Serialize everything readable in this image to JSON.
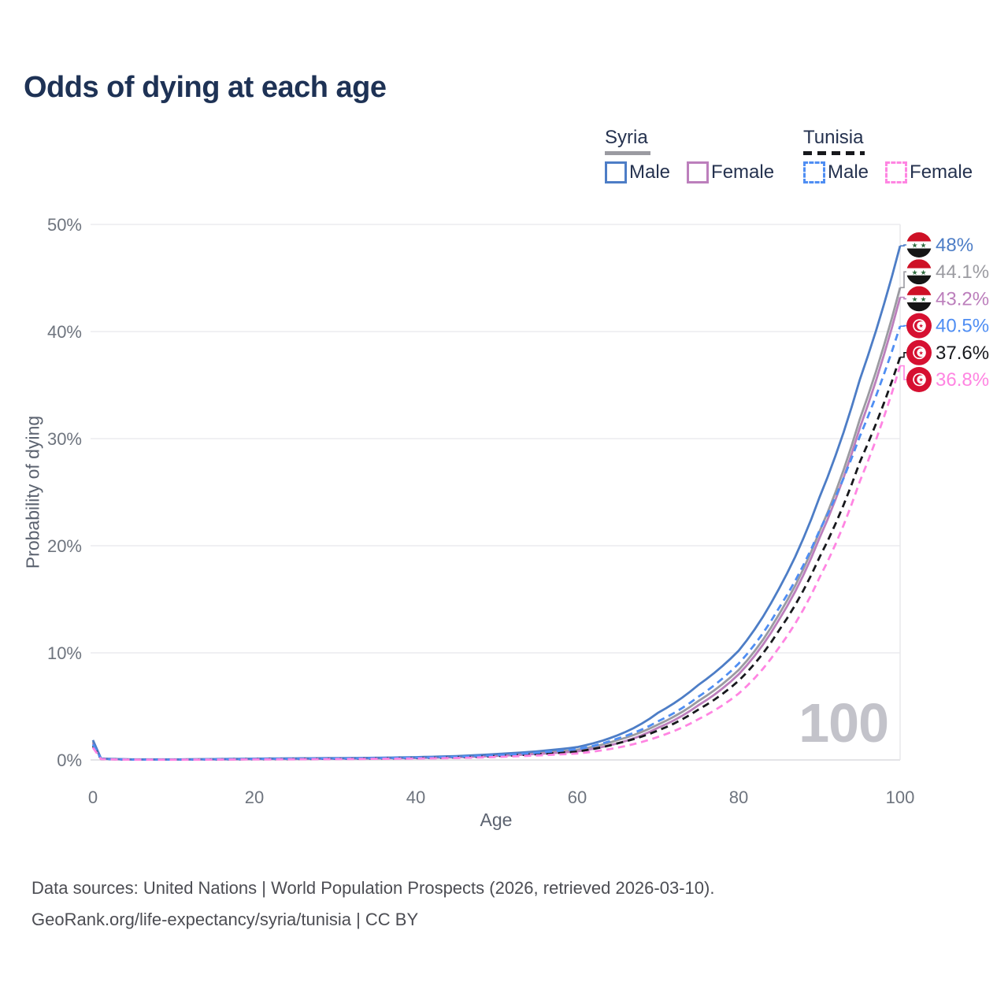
{
  "title": "Odds of dying at each age",
  "legend": {
    "groups": [
      {
        "name": "Syria",
        "key_style": "solid",
        "key_color": "#9b9ba1",
        "items": [
          {
            "label": "Male",
            "color": "#4d7dc6",
            "style": "solid"
          },
          {
            "label": "Female",
            "color": "#bc7fbc",
            "style": "solid"
          }
        ]
      },
      {
        "name": "Tunisia",
        "key_style": "dashed",
        "key_color": "#17181c",
        "items": [
          {
            "label": "Male",
            "color": "#4f8ef3",
            "style": "dashed"
          },
          {
            "label": "Female",
            "color": "#ff85e2",
            "style": "dashed"
          }
        ]
      }
    ]
  },
  "chart_data": {
    "type": "line",
    "title": "Odds of dying at each age",
    "xlabel": "Age",
    "ylabel": "Probability of dying",
    "xlim": [
      0,
      100
    ],
    "ylim": [
      0,
      50
    ],
    "grid": "horizontal",
    "watermark": "100",
    "xticks": [
      {
        "value": 0,
        "label": "0"
      },
      {
        "value": 20,
        "label": "20"
      },
      {
        "value": 40,
        "label": "40"
      },
      {
        "value": 60,
        "label": "60"
      },
      {
        "value": 80,
        "label": "80"
      },
      {
        "value": 100,
        "label": "100"
      }
    ],
    "yticks": [
      {
        "value": 0,
        "label": "0%"
      },
      {
        "value": 10,
        "label": "10%"
      },
      {
        "value": 20,
        "label": "20%"
      },
      {
        "value": 30,
        "label": "30%"
      },
      {
        "value": 40,
        "label": "40%"
      },
      {
        "value": 50,
        "label": "50%"
      }
    ],
    "ages": [
      0,
      1,
      5,
      10,
      15,
      20,
      25,
      30,
      35,
      40,
      45,
      50,
      55,
      60,
      65,
      70,
      75,
      80,
      85,
      90,
      95,
      100
    ],
    "series": [
      {
        "name": "Syria (both sexes)",
        "country": "Syria",
        "sex": "both",
        "color": "#9b9ba1",
        "line_style": "solid",
        "flag": "syria",
        "end_value": 44.1,
        "end_label": "44.1%",
        "values": [
          1.7,
          0.12,
          0.04,
          0.04,
          0.07,
          0.1,
          0.12,
          0.14,
          0.17,
          0.22,
          0.3,
          0.45,
          0.66,
          0.95,
          1.85,
          3.3,
          5.5,
          8.4,
          13.6,
          21.3,
          31.8,
          44.1
        ]
      },
      {
        "name": "Syria Female",
        "country": "Syria",
        "sex": "female",
        "color": "#bc7fbc",
        "line_style": "solid",
        "flag": "syria",
        "end_value": 43.2,
        "end_label": "43.2%",
        "values": [
          1.55,
          0.11,
          0.04,
          0.04,
          0.05,
          0.07,
          0.09,
          0.11,
          0.14,
          0.18,
          0.25,
          0.38,
          0.56,
          0.8,
          1.55,
          3.0,
          5.1,
          8.0,
          13.1,
          20.7,
          31.0,
          43.2
        ]
      },
      {
        "name": "Syria Male",
        "country": "Syria",
        "sex": "male",
        "color": "#4d7dc6",
        "line_style": "solid",
        "flag": "syria",
        "end_value": 48.0,
        "end_label": "48%",
        "values": [
          1.85,
          0.13,
          0.05,
          0.05,
          0.08,
          0.12,
          0.15,
          0.17,
          0.2,
          0.26,
          0.36,
          0.55,
          0.8,
          1.2,
          2.3,
          4.4,
          7.0,
          10.2,
          16.0,
          24.5,
          35.5,
          48.0
        ]
      },
      {
        "name": "Tunisia (both sexes)",
        "country": "Tunisia",
        "sex": "both",
        "color": "#17181c",
        "line_style": "dashed",
        "flag": "tunisia",
        "end_value": 37.6,
        "end_label": "37.6%",
        "values": [
          1.3,
          0.09,
          0.03,
          0.03,
          0.05,
          0.07,
          0.09,
          0.11,
          0.13,
          0.17,
          0.24,
          0.36,
          0.54,
          0.78,
          1.55,
          2.75,
          4.7,
          7.4,
          12.1,
          18.9,
          27.8,
          37.6
        ]
      },
      {
        "name": "Tunisia Male",
        "country": "Tunisia",
        "sex": "male",
        "color": "#4f8ef3",
        "line_style": "dashed",
        "flag": "tunisia",
        "end_value": 40.5,
        "end_label": "40.5%",
        "values": [
          1.45,
          0.1,
          0.03,
          0.03,
          0.06,
          0.09,
          0.11,
          0.13,
          0.16,
          0.21,
          0.29,
          0.44,
          0.68,
          1.0,
          2.0,
          3.6,
          5.9,
          9.0,
          14.2,
          21.4,
          30.2,
          40.5
        ]
      },
      {
        "name": "Tunisia Female",
        "country": "Tunisia",
        "sex": "female",
        "color": "#ff85e2",
        "line_style": "dashed",
        "flag": "tunisia",
        "end_value": 36.8,
        "end_label": "36.8%",
        "values": [
          1.15,
          0.08,
          0.02,
          0.02,
          0.03,
          0.05,
          0.06,
          0.08,
          0.1,
          0.13,
          0.18,
          0.28,
          0.42,
          0.6,
          1.15,
          2.15,
          3.8,
          6.2,
          10.5,
          17.0,
          26.0,
          36.8
        ]
      }
    ]
  },
  "footer": {
    "line1": "Data sources: United Nations | World Population Prospects (2026, retrieved 2026-03-10).",
    "line2": "GeoRank.org/life-expectancy/syria/tunisia | CC BY"
  }
}
